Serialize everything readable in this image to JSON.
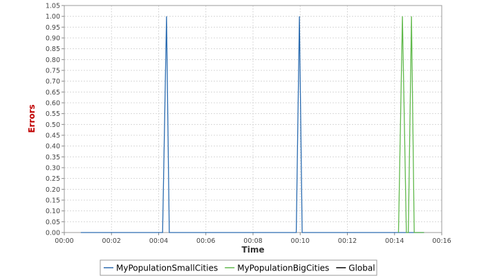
{
  "chart_data": {
    "type": "line",
    "xlabel": "Time",
    "ylabel": "Errors",
    "xlim": [
      "00:00",
      "00:16"
    ],
    "ylim": [
      0,
      1.05
    ],
    "x_ticks": [
      "00:00",
      "00:02",
      "00:04",
      "00:06",
      "00:08",
      "00:10",
      "00:12",
      "00:14",
      "00:16"
    ],
    "y_ticks": [
      "0.00",
      "0.05",
      "0.10",
      "0.15",
      "0.20",
      "0.25",
      "0.30",
      "0.35",
      "0.40",
      "0.45",
      "0.50",
      "0.55",
      "0.60",
      "0.65",
      "0.70",
      "0.75",
      "0.80",
      "0.85",
      "0.90",
      "0.95",
      "1.00",
      "1.05"
    ],
    "grid": true,
    "legend_position": "bottom",
    "colors": {
      "ylabel": "#c00000",
      "xlabel": "#333333",
      "plot_border": "#999999",
      "grid": "#d8d8d8"
    },
    "series": [
      {
        "name": "MyPopulationSmallCities",
        "color": "#2a6bb0",
        "points": [
          [
            "00:00:42",
            0
          ],
          [
            "00:04:10",
            0
          ],
          [
            "00:04:20",
            1
          ],
          [
            "00:04:27",
            0
          ],
          [
            "00:09:50",
            0
          ],
          [
            "00:09:58",
            1
          ],
          [
            "00:10:05",
            0
          ],
          [
            "00:15:15",
            0
          ]
        ]
      },
      {
        "name": "MyPopulationBigCities",
        "color": "#5fb84a",
        "points": [
          [
            "00:14:10",
            0
          ],
          [
            "00:14:20",
            1
          ],
          [
            "00:14:30",
            0
          ],
          [
            "00:14:35",
            0
          ],
          [
            "00:14:43",
            1
          ],
          [
            "00:14:50",
            0
          ],
          [
            "00:15:15",
            0
          ]
        ]
      },
      {
        "name": "Global",
        "color": "#000000",
        "points": []
      }
    ]
  }
}
